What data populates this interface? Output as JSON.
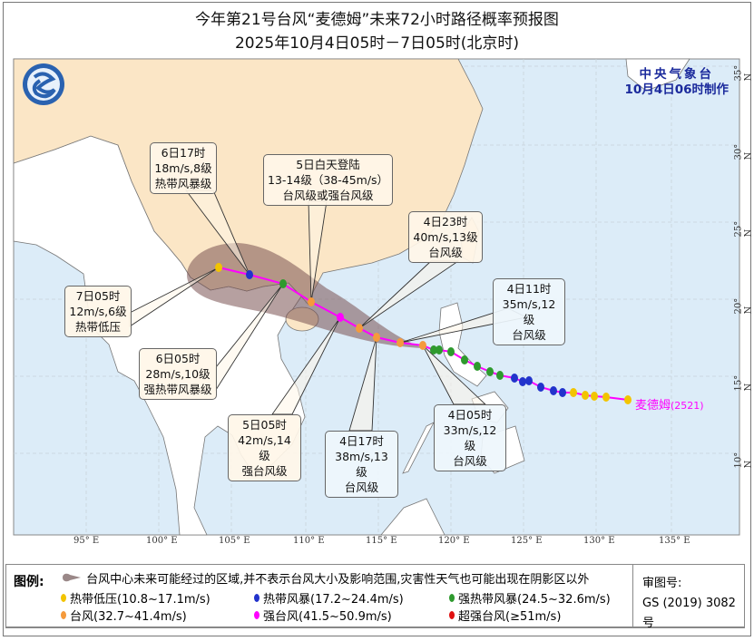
{
  "header": {
    "title": "今年第21号台风“麦德姆”未来72小时路径概率预报图",
    "subtitle": "2025年10月4日05时－7日05时(北京时)"
  },
  "agency": {
    "name": "中央气象台",
    "issued": "10月4日06时制作",
    "logo": "cma-logo"
  },
  "storm": {
    "name": "麦德姆",
    "id": "(2521)"
  },
  "axes": {
    "longitude": [
      "95° E",
      "100° E",
      "105° E",
      "110° E",
      "115° E",
      "120° E",
      "125° E",
      "130° E",
      "135° E"
    ],
    "latitude": [
      "35° N",
      "30° N",
      "25° N",
      "20° N",
      "15° N",
      "10° N"
    ]
  },
  "forecasts": [
    {
      "time": "6日17时",
      "wind": "18m/s,8级",
      "level": "热带风暴级"
    },
    {
      "time": "5日白天登陆",
      "wind": "13-14级（38-45m/s）",
      "level": "台风级或强台风级"
    },
    {
      "time": "4日23时",
      "wind": "40m/s,13级",
      "level": "台风级"
    },
    {
      "time": "4日11时",
      "wind": "35m/s,12级",
      "level": "台风级"
    },
    {
      "time": "7日05时",
      "wind": "12m/s,6级",
      "level": "热带低压"
    },
    {
      "time": "6日05时",
      "wind": "28m/s,10级",
      "level": "强热带风暴级"
    },
    {
      "time": "5日05时",
      "wind": "42m/s,14级",
      "level": "强台风级"
    },
    {
      "time": "4日17时",
      "wind": "38m/s,13级",
      "level": "台风级"
    },
    {
      "time": "4日05时",
      "wind": "33m/s,12级",
      "level": "台风级"
    }
  ],
  "legend": {
    "title": "图例:",
    "cone_note": "台风中心未来可能经过的区域,并不表示台风大小及影响范围,灾害性天气也可能出现在阴影区以外",
    "items": [
      {
        "label": "热带低压(10.8~17.1m/s)",
        "color": "#f2c400"
      },
      {
        "label": "热带风暴(17.2~24.4m/s)",
        "color": "#2233cc"
      },
      {
        "label": "强热带风暴(24.5~32.6m/s)",
        "color": "#2e9a2e"
      },
      {
        "label": "台风(32.7~41.4m/s)",
        "color": "#f59a3c"
      },
      {
        "label": "强台风(41.5~50.9m/s)",
        "color": "#ff00ff"
      },
      {
        "label": "超强台风(≥51m/s)",
        "color": "#e01010"
      }
    ],
    "review_label": "审图号:",
    "review_no": "GS (2019) 3082号"
  },
  "colors": {
    "sea": "#dcecf8",
    "china_land": "#fbe6c6",
    "other_land": "#ffffff",
    "track": "#ff00ff",
    "cone": "#7a5252"
  }
}
